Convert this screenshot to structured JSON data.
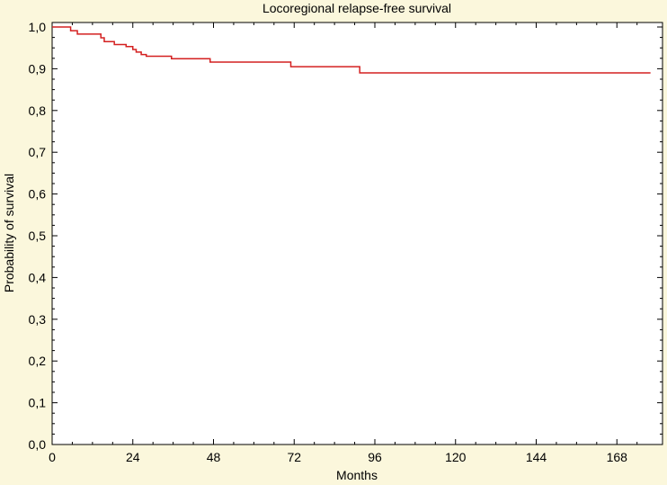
{
  "chart_data": {
    "type": "line",
    "title": "Locoregional relapse-free survival",
    "xlabel": "Months",
    "ylabel": "Probability of survival",
    "xlim": [
      0,
      178
    ],
    "ylim": [
      0,
      1.0
    ],
    "x_ticks": [
      "0",
      "24",
      "48",
      "72",
      "96",
      "120",
      "144",
      "168"
    ],
    "y_ticks": [
      "0,0",
      "0,1",
      "0,2",
      "0,3",
      "0,4",
      "0,5",
      "0,6",
      "0,7",
      "0,8",
      "0,9",
      "1,0"
    ],
    "grid": false,
    "series": [
      {
        "color": "#d42020",
        "step": true,
        "x": [
          0,
          5.5,
          7.5,
          14.5,
          15.5,
          18.5,
          22,
          24,
          25,
          26.5,
          28,
          35.5,
          47,
          71,
          91.5,
          178
        ],
        "y": [
          1.0,
          0.991,
          0.983,
          0.974,
          0.965,
          0.958,
          0.953,
          0.946,
          0.94,
          0.934,
          0.93,
          0.924,
          0.916,
          0.905,
          0.89,
          0.89
        ]
      }
    ]
  },
  "colors": {
    "background": "#fbf7dc",
    "plot_background": "#ffffff",
    "series": "#d42020"
  }
}
